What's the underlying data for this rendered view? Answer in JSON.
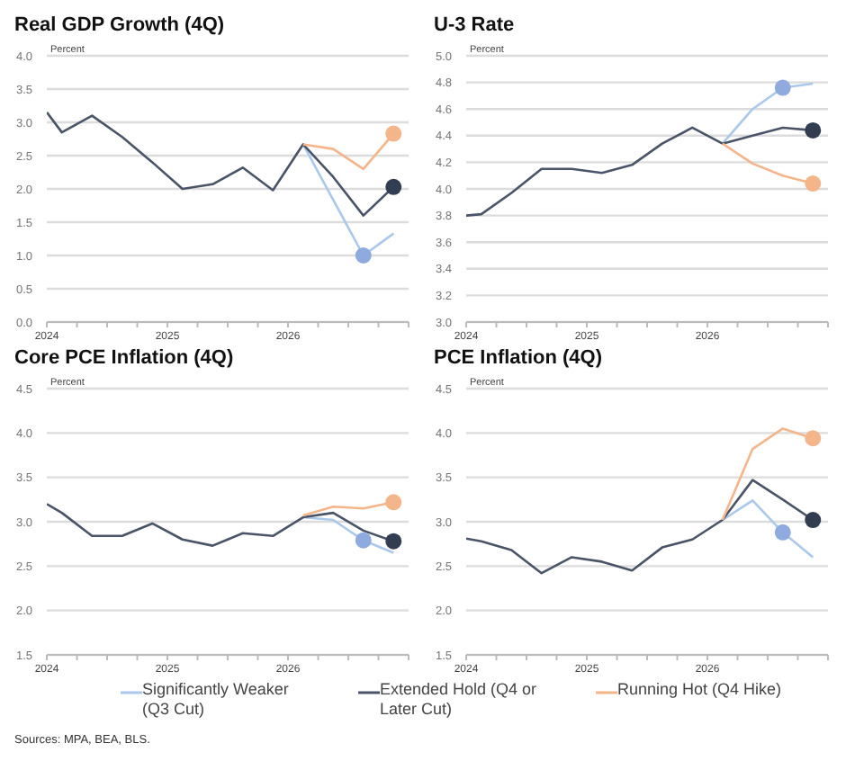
{
  "chart_data": [
    {
      "type": "line",
      "title": "Real GDP Growth (4Q)",
      "ylabel": "Percent",
      "legend": "bottom",
      "grid": "y",
      "annotations": [
        "Sources: MPA, BEA, BLS."
      ],
      "xlim": [
        2024,
        2027
      ],
      "xticks": [
        2024,
        {
          "value": 2024.25,
          "label": null
        },
        {
          "value": 2024.5,
          "label": null
        },
        {
          "value": 2024.75,
          "label": null
        },
        2025,
        {
          "value": 2025.25,
          "label": null
        },
        {
          "value": 2025.5,
          "label": null
        },
        {
          "value": 2025.75,
          "label": null
        },
        2026,
        {
          "value": 2026.25,
          "label": null
        },
        {
          "value": 2026.5,
          "label": null
        },
        {
          "value": 2026.75,
          "label": null
        },
        {
          "value": 2027,
          "label": null
        }
      ],
      "ylim": [
        0,
        4
      ],
      "yticks": [
        {
          "value": 0,
          "label": "0.0"
        },
        {
          "value": 0.5,
          "label": "0.5"
        },
        {
          "value": 1,
          "label": "1.0"
        },
        {
          "value": 1.5,
          "label": "1.5"
        },
        {
          "value": 2,
          "label": "2.0"
        },
        {
          "value": 2.5,
          "label": "2.5"
        },
        {
          "value": 3,
          "label": "3.0"
        },
        {
          "value": 3.5,
          "label": "3.5"
        },
        {
          "value": 4,
          "label": "4.0"
        }
      ],
      "series": [
        {
          "name": "Significantly Weaker (Q3 Cut)",
          "color": "#a9c8ec",
          "x": [
            2026.125,
            2026.625,
            2026.875
          ],
          "values": [
            2.67,
            1.0,
            1.33
          ]
        },
        {
          "name": "Extended Hold (Q4 or Later Cut)",
          "color": "#4a5468",
          "x": [
            2024,
            2024.125,
            2024.375,
            2024.625,
            2024.875,
            2025.125,
            2025.375,
            2025.625,
            2025.875,
            2026.125,
            2026.375,
            2026.625,
            2026.875
          ],
          "values": [
            3.15,
            2.85,
            3.1,
            2.78,
            2.4,
            2.0,
            2.07,
            2.32,
            1.98,
            2.67,
            2.18,
            1.6,
            2.03
          ]
        },
        {
          "name": "Running Hot (Q4 Hike)",
          "color": "#f5b58b",
          "x": [
            2026.125,
            2026.375,
            2026.625,
            2026.875
          ],
          "values": [
            2.67,
            2.6,
            2.3,
            2.83
          ]
        },
        {
          "type": "scatter",
          "color": "#8eaadf",
          "x": [
            2026.625
          ],
          "values": [
            1.0
          ]
        },
        {
          "type": "scatter",
          "color": "#333d52",
          "x": [
            2026.875
          ],
          "values": [
            2.03
          ]
        },
        {
          "type": "scatter",
          "color": "#f5b58b",
          "x": [
            2026.875
          ],
          "values": [
            2.83
          ]
        }
      ]
    },
    {
      "type": "line",
      "title": "U-3 Rate",
      "ylabel": "Percent",
      "grid": "y",
      "xlim": [
        2024,
        2027
      ],
      "xticks": [
        2024,
        {
          "value": 2024.25,
          "label": null
        },
        {
          "value": 2024.5,
          "label": null
        },
        {
          "value": 2024.75,
          "label": null
        },
        2025,
        {
          "value": 2025.25,
          "label": null
        },
        {
          "value": 2025.5,
          "label": null
        },
        {
          "value": 2025.75,
          "label": null
        },
        2026,
        {
          "value": 2026.25,
          "label": null
        },
        {
          "value": 2026.5,
          "label": null
        },
        {
          "value": 2026.75,
          "label": null
        },
        {
          "value": 2027,
          "label": null
        }
      ],
      "ylim": [
        3,
        5
      ],
      "yticks": [
        {
          "value": 3,
          "label": "3.0"
        },
        3.2,
        3.4,
        3.6,
        3.8,
        {
          "value": 4,
          "label": "4.0"
        },
        4.2,
        4.4,
        4.6,
        4.8,
        {
          "value": 5,
          "label": "5.0"
        }
      ],
      "series": [
        {
          "color": "#a9c8ec",
          "x": [
            2026.125,
            2026.375,
            2026.625,
            2026.875
          ],
          "values": [
            4.34,
            4.6,
            4.76,
            4.79
          ]
        },
        {
          "color": "#4a5468",
          "x": [
            2024,
            2024.125,
            2024.375,
            2024.625,
            2024.875,
            2025.125,
            2025.375,
            2025.625,
            2025.875,
            2026.125,
            2026.375,
            2026.625,
            2026.875
          ],
          "values": [
            3.8,
            3.81,
            3.97,
            4.15,
            4.15,
            4.12,
            4.18,
            4.34,
            4.46,
            4.34,
            4.4,
            4.46,
            4.44
          ]
        },
        {
          "color": "#f5b58b",
          "x": [
            2026.125,
            2026.375,
            2026.625,
            2026.875
          ],
          "values": [
            4.34,
            4.19,
            4.1,
            4.04
          ]
        },
        {
          "type": "scatter",
          "color": "#8eaadf",
          "x": [
            2026.625
          ],
          "values": [
            4.76
          ]
        },
        {
          "type": "scatter",
          "color": "#333d52",
          "x": [
            2026.875
          ],
          "values": [
            4.44
          ]
        },
        {
          "type": "scatter",
          "color": "#f5b58b",
          "x": [
            2026.875
          ],
          "values": [
            4.04
          ]
        }
      ]
    },
    {
      "type": "line",
      "title": "Core PCE Inflation (4Q)",
      "ylabel": "Percent",
      "grid": "y",
      "xlim": [
        2024,
        2027
      ],
      "xticks": [
        2024,
        {
          "value": 2024.25,
          "label": null
        },
        {
          "value": 2024.5,
          "label": null
        },
        {
          "value": 2024.75,
          "label": null
        },
        2025,
        {
          "value": 2025.25,
          "label": null
        },
        {
          "value": 2025.5,
          "label": null
        },
        {
          "value": 2025.75,
          "label": null
        },
        2026,
        {
          "value": 2026.25,
          "label": null
        },
        {
          "value": 2026.5,
          "label": null
        },
        {
          "value": 2026.75,
          "label": null
        },
        {
          "value": 2027,
          "label": null
        }
      ],
      "ylim": [
        1.5,
        4.5
      ],
      "yticks": [
        1.5,
        {
          "value": 2,
          "label": "2.0"
        },
        2.5,
        {
          "value": 3,
          "label": "3.0"
        },
        3.5,
        {
          "value": 4,
          "label": "4.0"
        },
        4.5
      ],
      "series": [
        {
          "color": "#a9c8ec",
          "x": [
            2026.125,
            2026.375,
            2026.625,
            2026.875
          ],
          "values": [
            3.05,
            3.02,
            2.79,
            2.65
          ]
        },
        {
          "color": "#4a5468",
          "x": [
            2024,
            2024.125,
            2024.375,
            2024.625,
            2024.875,
            2025.125,
            2025.375,
            2025.625,
            2025.875,
            2026.125,
            2026.375,
            2026.625,
            2026.875
          ],
          "values": [
            3.2,
            3.1,
            2.84,
            2.84,
            2.98,
            2.8,
            2.73,
            2.87,
            2.84,
            3.05,
            3.1,
            2.9,
            2.78
          ]
        },
        {
          "color": "#f5b58b",
          "x": [
            2026.125,
            2026.375,
            2026.625,
            2026.875
          ],
          "values": [
            3.07,
            3.17,
            3.15,
            3.22
          ]
        },
        {
          "type": "scatter",
          "color": "#8eaadf",
          "x": [
            2026.625
          ],
          "values": [
            2.79
          ]
        },
        {
          "type": "scatter",
          "color": "#333d52",
          "x": [
            2026.875
          ],
          "values": [
            2.78
          ]
        },
        {
          "type": "scatter",
          "color": "#f5b58b",
          "x": [
            2026.875
          ],
          "values": [
            3.22
          ]
        }
      ]
    },
    {
      "type": "line",
      "title": "PCE Inflation (4Q)",
      "ylabel": "Percent",
      "grid": "y",
      "xlim": [
        2024,
        2027
      ],
      "xticks": [
        2024,
        {
          "value": 2024.25,
          "label": null
        },
        {
          "value": 2024.5,
          "label": null
        },
        {
          "value": 2024.75,
          "label": null
        },
        2025,
        {
          "value": 2025.25,
          "label": null
        },
        {
          "value": 2025.5,
          "label": null
        },
        {
          "value": 2025.75,
          "label": null
        },
        2026,
        {
          "value": 2026.25,
          "label": null
        },
        {
          "value": 2026.5,
          "label": null
        },
        {
          "value": 2026.75,
          "label": null
        },
        {
          "value": 2027,
          "label": null
        }
      ],
      "ylim": [
        1.5,
        4.5
      ],
      "yticks": [
        1.5,
        {
          "value": 2,
          "label": "2.0"
        },
        2.5,
        {
          "value": 3,
          "label": "3.0"
        },
        3.5,
        {
          "value": 4,
          "label": "4.0"
        },
        4.5
      ],
      "series": [
        {
          "color": "#a9c8ec",
          "x": [
            2026.125,
            2026.375,
            2026.625,
            2026.875
          ],
          "values": [
            3.02,
            3.24,
            2.88,
            2.6
          ]
        },
        {
          "color": "#4a5468",
          "x": [
            2024,
            2024.125,
            2024.375,
            2024.625,
            2024.875,
            2025.125,
            2025.375,
            2025.625,
            2025.875,
            2026.125,
            2026.375,
            2026.625,
            2026.875
          ],
          "values": [
            2.81,
            2.78,
            2.68,
            2.42,
            2.6,
            2.55,
            2.45,
            2.71,
            2.8,
            3.02,
            3.47,
            3.25,
            3.02
          ]
        },
        {
          "color": "#f5b58b",
          "x": [
            2026.125,
            2026.375,
            2026.625,
            2026.875
          ],
          "values": [
            3.02,
            3.82,
            4.05,
            3.94
          ]
        },
        {
          "type": "scatter",
          "color": "#8eaadf",
          "x": [
            2026.625
          ],
          "values": [
            2.88
          ]
        },
        {
          "type": "scatter",
          "color": "#333d52",
          "x": [
            2026.875
          ],
          "values": [
            3.02
          ]
        },
        {
          "type": "scatter",
          "color": "#f5b58b",
          "x": [
            2026.875
          ],
          "values": [
            3.94
          ]
        }
      ]
    }
  ]
}
